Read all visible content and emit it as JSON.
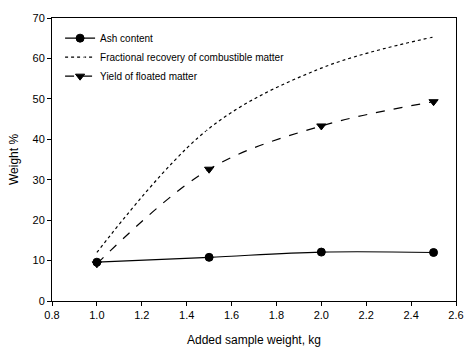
{
  "chart_data": {
    "type": "line",
    "x_label": "Added sample weight, kg",
    "y_label": "Weight %",
    "x": [
      1.0,
      1.5,
      2.0,
      2.5
    ],
    "series": [
      {
        "name": "Ash content",
        "color": "#000000",
        "marker": "circle",
        "line_style": "solid",
        "values": [
          9.6,
          10.8,
          12.1,
          12.0
        ]
      },
      {
        "name": "Fractional recovery of combustible matter",
        "color": "#000000",
        "marker": "circle-open",
        "line_style": "dot",
        "values": [
          12.0,
          42.7,
          57.6,
          65.3
        ]
      },
      {
        "name": "Yield of floated matter",
        "color": "#000000",
        "marker": "triangle-down",
        "line_style": "dash",
        "values": [
          9.2,
          32.6,
          43.3,
          49.3
        ]
      }
    ],
    "xlim": [
      0.8,
      2.6
    ],
    "xticks": [
      {
        "value": 0.8,
        "label": "0.8"
      },
      {
        "value": 1.0,
        "label": "1.0"
      },
      {
        "value": 1.2,
        "label": "1.2"
      },
      {
        "value": 1.4,
        "label": "1.4"
      },
      {
        "value": 1.6,
        "label": "1.6"
      },
      {
        "value": 1.8,
        "label": "1.8"
      },
      {
        "value": 2.0,
        "label": "2.0"
      },
      {
        "value": 2.2,
        "label": "2.2"
      },
      {
        "value": 2.4,
        "label": "2.4"
      },
      {
        "value": 2.6,
        "label": "2.6"
      }
    ],
    "ylim": [
      0,
      70
    ],
    "yticks": [
      0,
      10,
      20,
      30,
      40,
      50,
      60,
      70
    ],
    "grid": false,
    "legend": "upper left"
  }
}
